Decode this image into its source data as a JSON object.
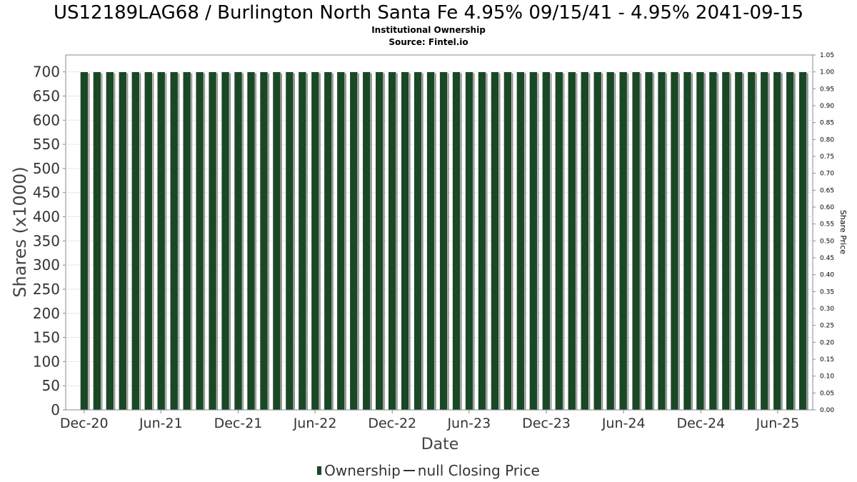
{
  "header": {
    "title": "US12189LAG68 / Burlington North Santa Fe 4.95% 09/15/41 - 4.95% 2041-09-15",
    "subtitle": "Institutional Ownership",
    "source": "Source: Fintel.io"
  },
  "legend": {
    "ownership_label": "Ownership",
    "price_label": "null Closing Price"
  },
  "colors": {
    "bar_fill": "#1a4726",
    "bar_shadow": "#8a8a8a",
    "grid": "#e6e6e6",
    "plot_border": "#888888"
  },
  "chart_data": {
    "type": "bar",
    "xlabel": "Date",
    "ylabel": "Shares (x1000)",
    "y2label": "Share Price",
    "ylim": [
      0,
      735
    ],
    "y2lim": [
      0,
      1.05
    ],
    "yticks": [
      0,
      50,
      100,
      150,
      200,
      250,
      300,
      350,
      400,
      450,
      500,
      550,
      600,
      650,
      700
    ],
    "y2ticks": [
      "0.00",
      "0.05",
      "0.10",
      "0.15",
      "0.20",
      "0.25",
      "0.30",
      "0.35",
      "0.40",
      "0.45",
      "0.50",
      "0.55",
      "0.60",
      "0.65",
      "0.70",
      "0.75",
      "0.80",
      "0.85",
      "0.90",
      "0.95",
      "1.00",
      "1.05"
    ],
    "x_tick_labels": [
      "Dec-20",
      "Jun-21",
      "Dec-21",
      "Jun-22",
      "Dec-22",
      "Jun-23",
      "Dec-23",
      "Jun-24",
      "Dec-24",
      "Jun-25"
    ],
    "x_start": "2020-11",
    "x_end": "2025-08",
    "bar_step_days": 30.4,
    "bar_count": 57,
    "series": [
      {
        "name": "Ownership",
        "value": 700
      }
    ],
    "grid": true,
    "legend_position": "bottom"
  }
}
